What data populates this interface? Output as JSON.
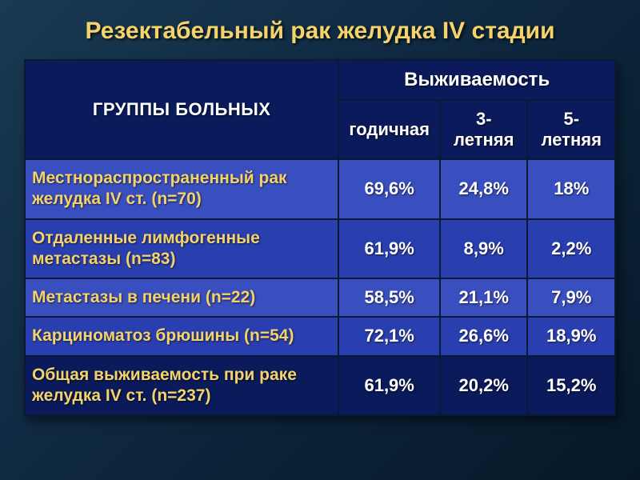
{
  "title": "Резектабельный рак желудка IV стадии",
  "title_color": "#f4d36a",
  "header": {
    "group_label": "ГРУППЫ БОЛЬНЫХ",
    "survival_label": "Выживаемость",
    "cols": [
      "годичная",
      "3-летняя",
      "5-летняя"
    ],
    "bg_color": "#0a1a5a",
    "text_color": "#ffffff"
  },
  "rows": [
    {
      "label": "Местнораспространенный рак желудка IV ст. (n=70)",
      "values": [
        "69,6%",
        "24,8%",
        "18%"
      ]
    },
    {
      "label": "Отдаленные лимфогенные метастазы (n=83)",
      "values": [
        "61,9%",
        "8,9%",
        "2,2%"
      ]
    },
    {
      "label": "Метастазы в печени (n=22)",
      "values": [
        "58,5%",
        "21,1%",
        "7,9%"
      ]
    },
    {
      "label": "Карциноматоз брюшины (n=54)",
      "values": [
        "72,1%",
        "26,6%",
        "18,9%"
      ]
    },
    {
      "label": "Общая выживаемость при раке желудка IV ст. (n=237)",
      "values": [
        "61,9%",
        "20,2%",
        "15,2%"
      ]
    }
  ],
  "style": {
    "row_bg_odd": "#3a4fbf",
    "row_bg_even": "#2a3faf",
    "last_row_bg": "#0a1a5a",
    "label_color": "#f4d36a",
    "value_color": "#ffffff",
    "border_color": "#0a1a35",
    "col_widths": [
      "55%",
      "15%",
      "15%",
      "15%"
    ]
  }
}
